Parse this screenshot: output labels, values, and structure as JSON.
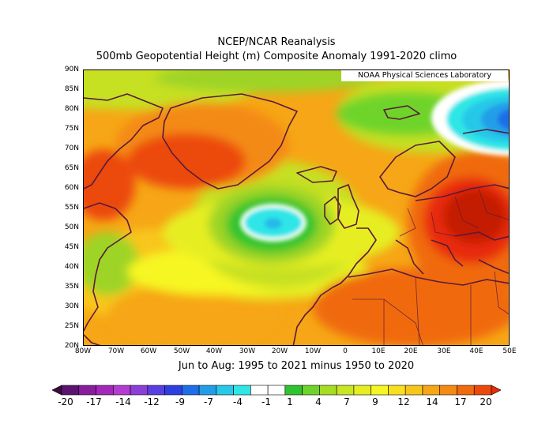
{
  "title_line1": "NCEP/NCAR Reanalysis",
  "title_line2": "500mb Geopotential Height (m) Composite Anomaly 1991-2020 climo",
  "credit": "NOAA Physical Sciences Laboratory",
  "subtitle": "Jun to Aug: 1995 to 2021 minus 1950 to 2020",
  "lat_labels": [
    "90N",
    "85N",
    "80N",
    "75N",
    "70N",
    "65N",
    "60N",
    "55N",
    "50N",
    "45N",
    "40N",
    "35N",
    "30N",
    "25N",
    "20N"
  ],
  "lon_labels": [
    "80W",
    "70W",
    "60W",
    "50W",
    "40W",
    "30W",
    "20W",
    "10W",
    "0",
    "10E",
    "20E",
    "30E",
    "40E",
    "50E"
  ],
  "colorbar": {
    "labels": [
      "-20",
      "-17",
      "-14",
      "-12",
      "-9",
      "-7",
      "-4",
      "-1",
      "1",
      "4",
      "7",
      "9",
      "12",
      "14",
      "17",
      "20"
    ],
    "colors": [
      "#3b0d3f",
      "#5c1270",
      "#8a1c9e",
      "#a328b8",
      "#b53cd0",
      "#8b3fd8",
      "#5a3fe0",
      "#2d3fe0",
      "#1f6ee8",
      "#229ee8",
      "#27c8e8",
      "#2fe6e6",
      "#ffffff",
      "#ffffff",
      "#2fc42f",
      "#6ed42a",
      "#a6dc24",
      "#cae622",
      "#e6ee22",
      "#f6f622",
      "#f8e01e",
      "#f8c61a",
      "#f6a616",
      "#f48a12",
      "#f06a0e",
      "#ec4a0a",
      "#e82c08"
    ]
  },
  "map": {
    "domain": {
      "lon_min": -80,
      "lon_max": 50,
      "lat_min": 20,
      "lat_max": 90
    },
    "anomaly_features": [
      {
        "name": "negative-anomaly-mid-atlantic",
        "center_lon": -22,
        "center_lat": 50,
        "value": -4
      },
      {
        "name": "negative-anomaly-barents-sea",
        "center_lon": 45,
        "center_lat": 76,
        "value": -7
      },
      {
        "name": "positive-anomaly-greenland",
        "center_lon": -40,
        "center_lat": 70,
        "value": 14
      },
      {
        "name": "positive-anomaly-labrador",
        "center_lon": -72,
        "center_lat": 62,
        "value": 14
      },
      {
        "name": "positive-anomaly-eastern-europe",
        "center_lon": 38,
        "center_lat": 55,
        "value": 20
      }
    ]
  }
}
